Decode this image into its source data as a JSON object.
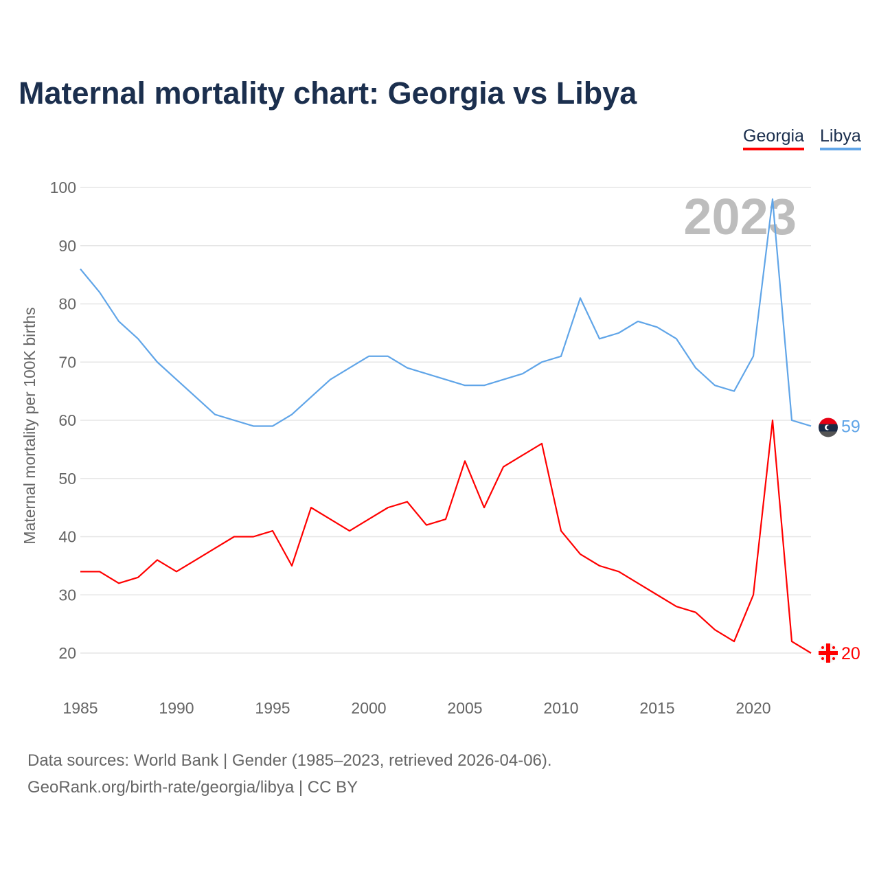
{
  "title": "Maternal mortality chart: Georgia vs Libya",
  "source_line1": "Data sources: World Bank | Gender (1985–2023, retrieved 2026-04-06).",
  "source_line2": "GeoRank.org/birth-rate/georgia/libya | CC BY",
  "chart_data": {
    "type": "line",
    "title": "Maternal mortality chart: Georgia vs Libya",
    "ylabel": "Maternal mortality per 100K births",
    "xlabel": "",
    "year_watermark": "2023",
    "ylim": [
      20,
      100
    ],
    "xlim": [
      1985,
      2023
    ],
    "yticks": [
      "20",
      "30",
      "40",
      "50",
      "60",
      "70",
      "80",
      "90",
      "100"
    ],
    "xticks": [
      "1985",
      "1990",
      "1995",
      "2000",
      "2005",
      "2010",
      "2015",
      "2020"
    ],
    "legend_position": "top-right",
    "grid": true,
    "x": [
      1985,
      1986,
      1987,
      1988,
      1989,
      1990,
      1991,
      1992,
      1993,
      1994,
      1995,
      1996,
      1997,
      1998,
      1999,
      2000,
      2001,
      2002,
      2003,
      2004,
      2005,
      2006,
      2007,
      2008,
      2009,
      2010,
      2011,
      2012,
      2013,
      2014,
      2015,
      2016,
      2017,
      2018,
      2019,
      2020,
      2021,
      2022,
      2023
    ],
    "series": [
      {
        "name": "Georgia",
        "color": "#ff0000",
        "end_label": "20",
        "values": [
          34,
          34,
          32,
          33,
          36,
          34,
          36,
          38,
          40,
          40,
          41,
          35,
          45,
          43,
          41,
          43,
          45,
          46,
          42,
          43,
          53,
          45,
          52,
          54,
          56,
          41,
          37,
          35,
          34,
          32,
          30,
          28,
          27,
          24,
          22,
          30,
          60,
          22,
          20
        ]
      },
      {
        "name": "Libya",
        "color": "#60a5e8",
        "end_label": "59",
        "values": [
          86,
          82,
          77,
          74,
          70,
          67,
          64,
          61,
          60,
          59,
          59,
          61,
          64,
          67,
          69,
          71,
          71,
          69,
          68,
          67,
          66,
          66,
          67,
          68,
          70,
          71,
          81,
          74,
          75,
          77,
          76,
          74,
          69,
          66,
          65,
          71,
          98,
          60,
          59
        ]
      }
    ]
  }
}
